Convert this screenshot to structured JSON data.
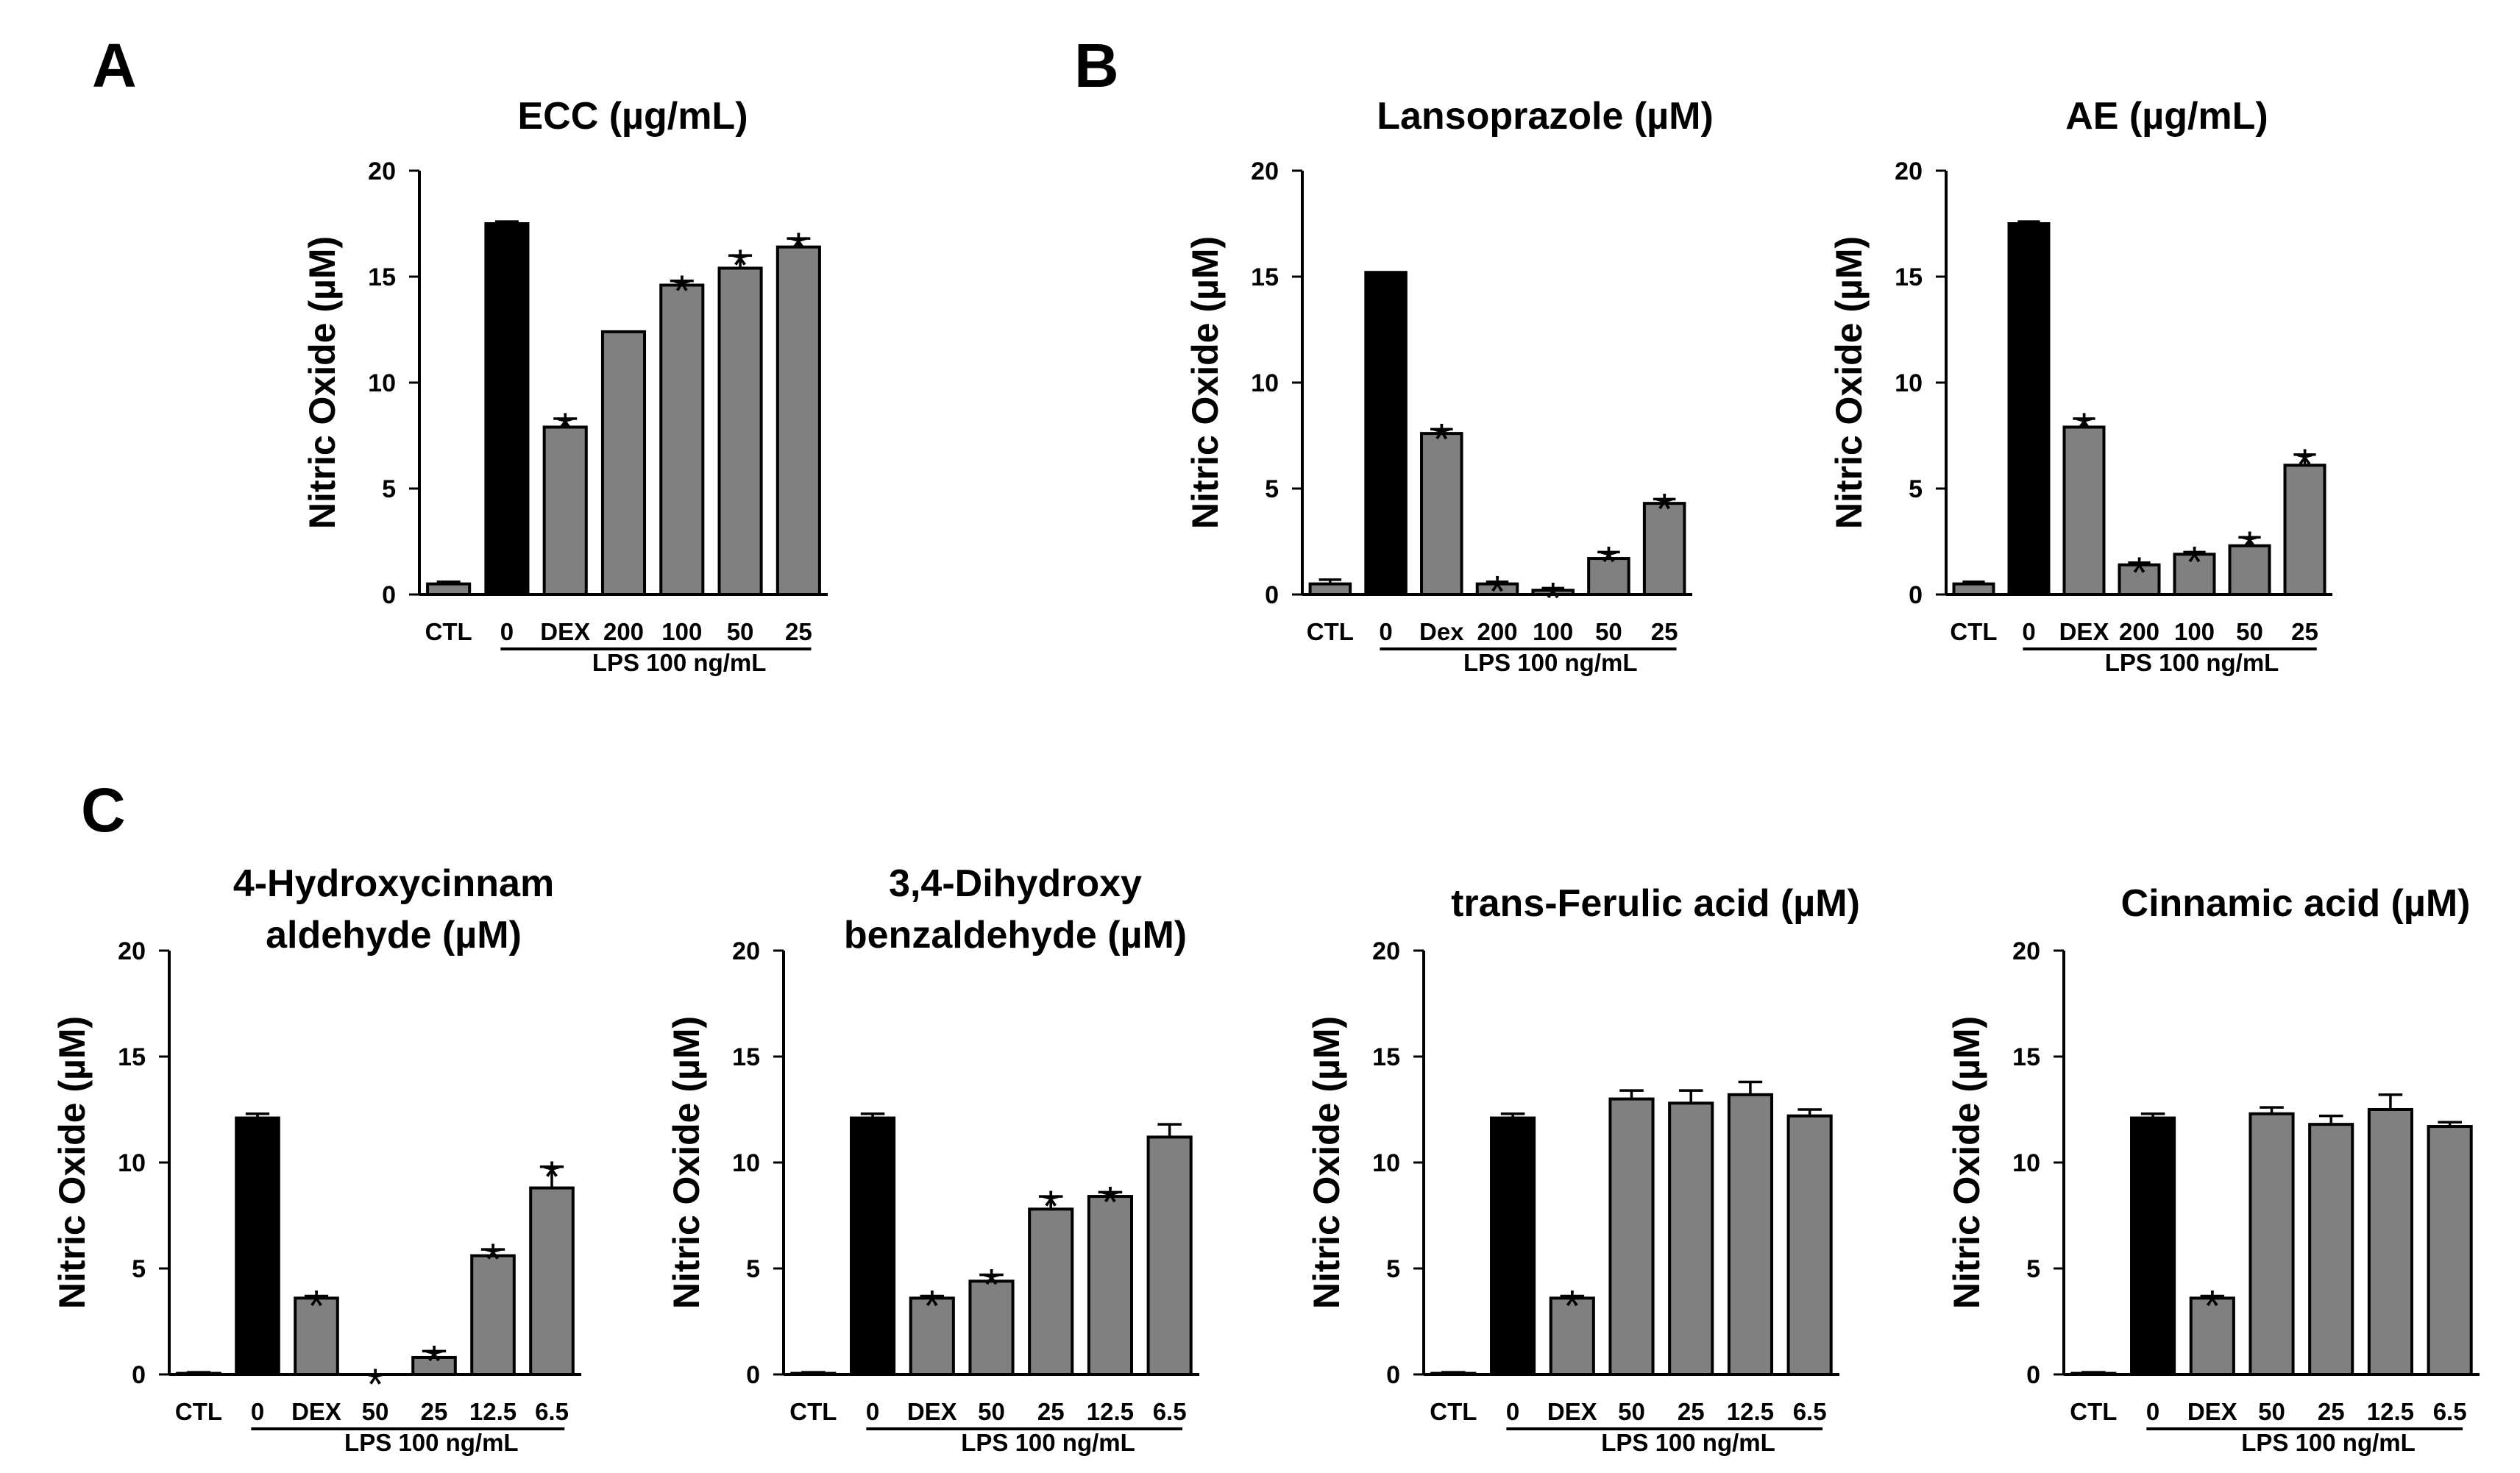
{
  "panel_letters": [
    "A",
    "B",
    "C"
  ],
  "colors": {
    "black_bar": "#000000",
    "gray_bar": "#808080",
    "ctl_bar": "#808080"
  },
  "chart_data": [
    {
      "id": "ecc",
      "type": "bar",
      "title_lines": [
        "ECC (µg/mL)"
      ],
      "ylabel": "Nitric Oxide (µM)",
      "ylim": [
        0,
        20
      ],
      "yticks": [
        0,
        5,
        10,
        15,
        20
      ],
      "categories": [
        "CTL",
        "0",
        "DEX",
        "200",
        "100",
        "50",
        "25"
      ],
      "values": [
        0.5,
        17.5,
        7.9,
        12.4,
        14.6,
        15.4,
        16.4
      ],
      "errors": [
        0.1,
        0.1,
        0.4,
        0,
        0.2,
        0.6,
        0.4
      ],
      "significant": [
        false,
        false,
        true,
        false,
        true,
        true,
        true
      ],
      "group_label": "LPS 100 ng/mL"
    },
    {
      "id": "lansoprazole",
      "type": "bar",
      "title_lines": [
        "Lansoprazole (µM)"
      ],
      "ylabel": "Nitric Oxide (µM)",
      "ylim": [
        0,
        20
      ],
      "yticks": [
        0,
        5,
        10,
        15,
        20
      ],
      "categories": [
        "CTL",
        "0",
        "Dex",
        "200",
        "100",
        "50",
        "25"
      ],
      "values": [
        0.5,
        15.2,
        7.6,
        0.5,
        0.2,
        1.7,
        4.3
      ],
      "errors": [
        0.2,
        0,
        0.2,
        0.1,
        0.1,
        0.3,
        0.2
      ],
      "significant": [
        false,
        false,
        true,
        true,
        true,
        true,
        true
      ],
      "group_label": "LPS 100 ng/mL"
    },
    {
      "id": "ae",
      "type": "bar",
      "title_lines": [
        "AE (µg/mL)"
      ],
      "ylabel": "Nitric Oxide (µM)",
      "ylim": [
        0,
        20
      ],
      "yticks": [
        0,
        5,
        10,
        15,
        20
      ],
      "categories": [
        "CTL",
        "0",
        "DEX",
        "200",
        "100",
        "50",
        "25"
      ],
      "values": [
        0.5,
        17.5,
        7.9,
        1.4,
        1.9,
        2.3,
        6.1
      ],
      "errors": [
        0.1,
        0.1,
        0.4,
        0.1,
        0.1,
        0.4,
        0.5
      ],
      "significant": [
        false,
        false,
        true,
        true,
        true,
        true,
        true
      ],
      "group_label": "LPS 100 ng/mL"
    },
    {
      "id": "hydroxycinnamaldehyde",
      "type": "bar",
      "title_lines": [
        "4-Hydroxycinnam",
        "aldehyde (µM)"
      ],
      "ylabel": "Nitric Oxide (µM)",
      "ylim": [
        0,
        20
      ],
      "yticks": [
        0,
        5,
        10,
        15,
        20
      ],
      "categories": [
        "CTL",
        "0",
        "DEX",
        "50",
        "25",
        "12.5",
        "6.5"
      ],
      "values": [
        0.05,
        12.1,
        3.6,
        0,
        0.8,
        5.6,
        8.8
      ],
      "errors": [
        0.05,
        0.2,
        0.1,
        0,
        0.3,
        0.3,
        1.0
      ],
      "significant": [
        false,
        false,
        true,
        true,
        true,
        true,
        true
      ],
      "group_label": "LPS 100 ng/mL"
    },
    {
      "id": "dihydroxybenzaldehyde",
      "type": "bar",
      "title_lines": [
        "3,4-Dihydroxy",
        "benzaldehyde (µM)"
      ],
      "ylabel": "Nitric Oxide (µM)",
      "ylim": [
        0,
        20
      ],
      "yticks": [
        0,
        5,
        10,
        15,
        20
      ],
      "categories": [
        "CTL",
        "0",
        "DEX",
        "50",
        "25",
        "12.5",
        "6.5"
      ],
      "values": [
        0.05,
        12.1,
        3.6,
        4.4,
        7.8,
        8.4,
        11.2
      ],
      "errors": [
        0.05,
        0.2,
        0.1,
        0.3,
        0.6,
        0.2,
        0.6
      ],
      "significant": [
        false,
        false,
        true,
        true,
        true,
        true,
        false
      ],
      "group_label": "LPS 100 ng/mL"
    },
    {
      "id": "ferulic",
      "type": "bar",
      "title_lines": [
        "trans-Ferulic acid (µM)"
      ],
      "ylabel": "Nitric Oxide (µM)",
      "ylim": [
        0,
        20
      ],
      "yticks": [
        0,
        5,
        10,
        15,
        20
      ],
      "categories": [
        "CTL",
        "0",
        "DEX",
        "50",
        "25",
        "12.5",
        "6.5"
      ],
      "values": [
        0.05,
        12.1,
        3.6,
        13.0,
        12.8,
        13.2,
        12.2
      ],
      "errors": [
        0.05,
        0.2,
        0.1,
        0.4,
        0.6,
        0.6,
        0.3
      ],
      "significant": [
        false,
        false,
        true,
        false,
        false,
        false,
        false
      ],
      "group_label": "LPS 100 ng/mL"
    },
    {
      "id": "cinnamic",
      "type": "bar",
      "title_lines": [
        "Cinnamic acid (µM)"
      ],
      "ylabel": "Nitric Oxide (µM)",
      "ylim": [
        0,
        20
      ],
      "yticks": [
        0,
        5,
        10,
        15,
        20
      ],
      "categories": [
        "CTL",
        "0",
        "DEX",
        "50",
        "25",
        "12.5",
        "6.5"
      ],
      "values": [
        0.05,
        12.1,
        3.6,
        12.3,
        11.8,
        12.5,
        11.7
      ],
      "errors": [
        0.05,
        0.2,
        0.1,
        0.3,
        0.4,
        0.7,
        0.2
      ],
      "significant": [
        false,
        false,
        true,
        false,
        false,
        false,
        false
      ],
      "group_label": "LPS 100 ng/mL"
    }
  ]
}
